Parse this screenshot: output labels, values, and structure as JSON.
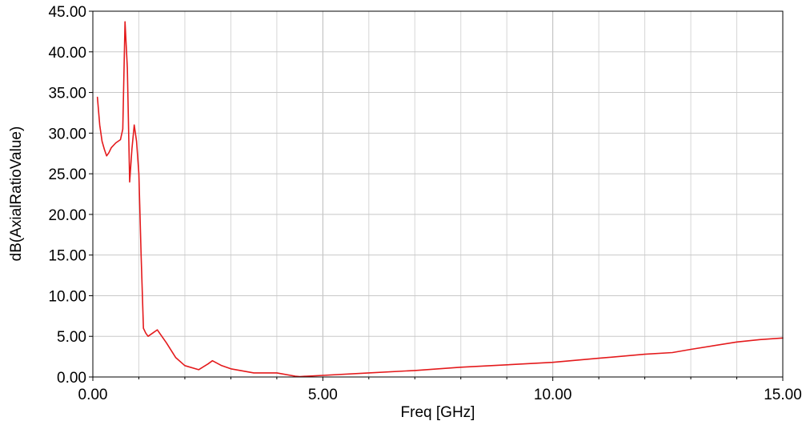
{
  "chart_data": {
    "type": "line",
    "title": "",
    "xlabel": "Freq [GHz]",
    "ylabel": "dB(AxialRatioValue)",
    "xlim": [
      0,
      15
    ],
    "ylim": [
      0,
      45
    ],
    "grid": true,
    "x_ticks": [
      "0.00",
      "5.00",
      "10.00",
      "15.00"
    ],
    "y_ticks": [
      "0.00",
      "5.00",
      "10.00",
      "15.00",
      "20.00",
      "25.00",
      "30.00",
      "35.00",
      "40.00",
      "45.00"
    ],
    "series": [
      {
        "name": "",
        "color": "#e41a1c",
        "x": [
          0.1,
          0.15,
          0.2,
          0.25,
          0.3,
          0.35,
          0.4,
          0.5,
          0.6,
          0.65,
          0.7,
          0.75,
          0.8,
          0.85,
          0.9,
          0.95,
          1.0,
          1.05,
          1.1,
          1.15,
          1.2,
          1.3,
          1.4,
          1.5,
          1.6,
          1.8,
          2.0,
          2.3,
          2.5,
          2.6,
          2.8,
          3.0,
          3.5,
          4.0,
          4.4,
          4.5,
          5.0,
          6.0,
          7.0,
          8.0,
          9.0,
          10.0,
          11.0,
          12.0,
          12.6,
          13.0,
          14.0,
          14.5,
          15.0
        ],
        "y": [
          34.4,
          31.0,
          29.0,
          28.0,
          27.2,
          27.6,
          28.2,
          28.8,
          29.2,
          30.5,
          43.7,
          38.0,
          24.0,
          28.0,
          31.0,
          29.0,
          25.0,
          15.0,
          6.0,
          5.4,
          5.0,
          5.4,
          5.8,
          5.0,
          4.2,
          2.4,
          1.4,
          0.9,
          1.6,
          2.0,
          1.4,
          1.0,
          0.5,
          0.5,
          0.1,
          0.05,
          0.2,
          0.5,
          0.8,
          1.2,
          1.5,
          1.8,
          2.3,
          2.8,
          3.0,
          3.4,
          4.3,
          4.6,
          4.8
        ]
      }
    ]
  }
}
